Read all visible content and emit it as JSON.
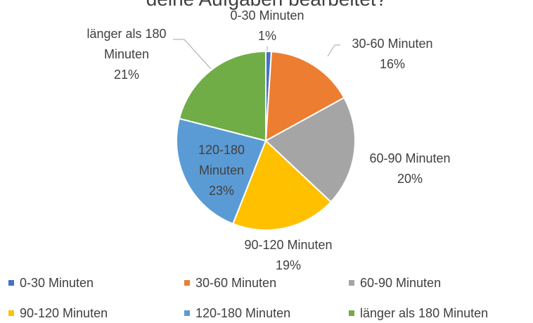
{
  "chart_data": {
    "type": "pie",
    "title": "deine Aufgaben bearbeitet?",
    "categories": [
      "0-30 Minuten",
      "30-60 Minuten",
      "60-90 Minuten",
      "90-120 Minuten",
      "120-180 Minuten",
      "länger als 180 Minuten"
    ],
    "values": [
      1,
      16,
      20,
      19,
      23,
      21
    ],
    "value_labels": [
      "1%",
      "16%",
      "20%",
      "19%",
      "23%",
      "21%"
    ],
    "colors": [
      "#4472c4",
      "#ed7d31",
      "#a5a5a5",
      "#ffc000",
      "#5b9bd5",
      "#70ad47"
    ],
    "legend": "bottom"
  }
}
